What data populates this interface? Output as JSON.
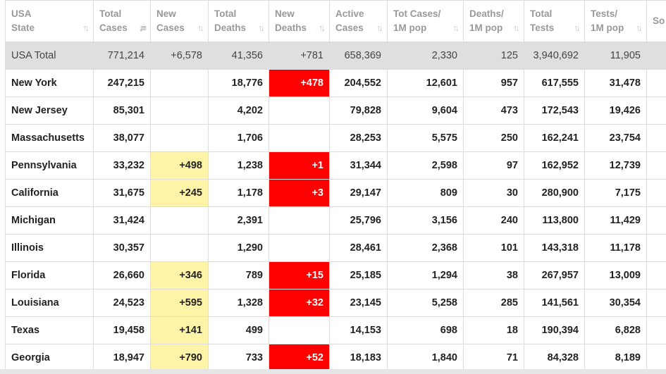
{
  "columns": [
    {
      "key": "state",
      "line1": "USA",
      "line2": "State",
      "active": false
    },
    {
      "key": "total_cases",
      "line1": "Total",
      "line2": "Cases",
      "active": true
    },
    {
      "key": "new_cases",
      "line1": "New",
      "line2": "Cases",
      "active": false
    },
    {
      "key": "total_deaths",
      "line1": "Total",
      "line2": "Deaths",
      "active": false
    },
    {
      "key": "new_deaths",
      "line1": "New",
      "line2": "Deaths",
      "active": false
    },
    {
      "key": "active_cases",
      "line1": "Active",
      "line2": "Cases",
      "active": false
    },
    {
      "key": "tot_cases_1m",
      "line1": "Tot Cases/",
      "line2": "1M pop",
      "active": false
    },
    {
      "key": "deaths_1m",
      "line1": "Deaths/",
      "line2": "1M pop",
      "active": false
    },
    {
      "key": "total_tests",
      "line1": "Total",
      "line2": "Tests",
      "active": false
    },
    {
      "key": "tests_1m",
      "line1": "Tests/",
      "line2": "1M pop",
      "active": false
    },
    {
      "key": "source",
      "line1": "So",
      "line2": "",
      "active": false
    }
  ],
  "total_row": [
    "USA Total",
    "771,214",
    "+6,578",
    "41,356",
    "+781",
    "658,369",
    "2,330",
    "125",
    "3,940,692",
    "11,905",
    ""
  ],
  "rows": [
    [
      "New York",
      "247,215",
      "",
      "18,776",
      "+478",
      "204,552",
      "12,601",
      "957",
      "617,555",
      "31,478",
      ""
    ],
    [
      "New Jersey",
      "85,301",
      "",
      "4,202",
      "",
      "79,828",
      "9,604",
      "473",
      "172,543",
      "19,426",
      ""
    ],
    [
      "Massachusetts",
      "38,077",
      "",
      "1,706",
      "",
      "28,253",
      "5,575",
      "250",
      "162,241",
      "23,754",
      ""
    ],
    [
      "Pennsylvania",
      "33,232",
      "+498",
      "1,238",
      "+1",
      "31,344",
      "2,598",
      "97",
      "162,952",
      "12,739",
      ""
    ],
    [
      "California",
      "31,675",
      "+245",
      "1,178",
      "+3",
      "29,147",
      "809",
      "30",
      "280,900",
      "7,175",
      ""
    ],
    [
      "Michigan",
      "31,424",
      "",
      "2,391",
      "",
      "25,796",
      "3,156",
      "240",
      "113,800",
      "11,429",
      ""
    ],
    [
      "Illinois",
      "30,357",
      "",
      "1,290",
      "",
      "28,461",
      "2,368",
      "101",
      "143,318",
      "11,178",
      ""
    ],
    [
      "Florida",
      "26,660",
      "+346",
      "789",
      "+15",
      "25,185",
      "1,294",
      "38",
      "267,957",
      "13,009",
      ""
    ],
    [
      "Louisiana",
      "24,523",
      "+595",
      "1,328",
      "+32",
      "23,145",
      "5,258",
      "285",
      "141,561",
      "30,354",
      ""
    ],
    [
      "Texas",
      "19,458",
      "+141",
      "499",
      "",
      "14,153",
      "698",
      "18",
      "190,394",
      "6,828",
      ""
    ],
    [
      "Georgia",
      "18,947",
      "+790",
      "733",
      "+52",
      "18,183",
      "1,840",
      "71",
      "84,328",
      "8,189",
      ""
    ]
  ],
  "colors": {
    "new_cases_highlight": "#fff3a8",
    "new_deaths_highlight": "#ff0000",
    "total_row_bg": "#dfdfdf",
    "header_text": "#999999"
  },
  "icons": {
    "sort": "sort-arrows-icon",
    "sort_active": "sort-desc-icon"
  }
}
